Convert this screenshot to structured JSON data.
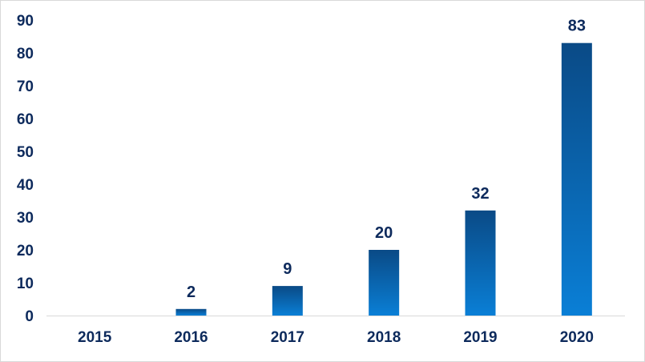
{
  "chart_data": {
    "type": "bar",
    "categories": [
      "2015",
      "2016",
      "2017",
      "2018",
      "2019",
      "2020"
    ],
    "values": [
      0,
      2,
      9,
      20,
      32,
      83
    ],
    "data_labels": [
      "",
      "2",
      "9",
      "20",
      "32",
      "83"
    ],
    "ylim": [
      0,
      90
    ],
    "yticks": [
      "0",
      "10",
      "20",
      "30",
      "40",
      "50",
      "60",
      "70",
      "80",
      "90"
    ],
    "grid": false,
    "legend": "none",
    "colors": {
      "bar_top": "#0a4a86",
      "bar_bottom": "#0a7fd6",
      "text": "#0d2a5c",
      "axis": "#d9d9d9"
    }
  }
}
